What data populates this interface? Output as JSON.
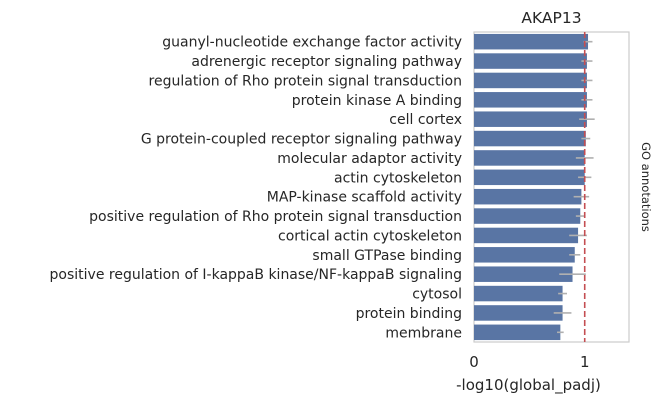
{
  "chart_data": {
    "type": "bar",
    "orientation": "horizontal",
    "title": "AKAP13",
    "xlabel": "-log10(global_padj)",
    "side_label": "GO annotations",
    "xlim": [
      0,
      1.4
    ],
    "xticks": [
      "0",
      "1"
    ],
    "reference_line": {
      "x": 1.0,
      "style": "dashed",
      "color": "#c44e52"
    },
    "bar_color": "#5975a4",
    "errorbar_color": "#b0b0b0",
    "grid": false,
    "categories": [
      "guanyl-nucleotide exchange factor activity",
      "adrenergic receptor signaling pathway",
      "regulation of Rho protein signal transduction",
      "protein kinase A binding",
      "cell cortex",
      "G protein-coupled receptor signaling pathway",
      "molecular adaptor activity",
      "actin cytoskeleton",
      "MAP-kinase scaffold activity",
      "positive regulation of Rho protein signal transduction",
      "cortical actin cytoskeleton",
      "small GTPase binding",
      "positive regulation of I-kappaB kinase/NF-kappaB signaling",
      "cytosol",
      "protein binding",
      "membrane"
    ],
    "values": [
      1.03,
      1.02,
      1.02,
      1.02,
      1.02,
      1.01,
      1.0,
      1.0,
      0.97,
      0.96,
      0.94,
      0.91,
      0.89,
      0.8,
      0.8,
      0.78
    ],
    "errors": [
      0.04,
      0.05,
      0.05,
      0.05,
      0.07,
      0.04,
      0.08,
      0.06,
      0.07,
      0.04,
      0.08,
      0.05,
      0.12,
      0.04,
      0.08,
      0.03
    ]
  }
}
